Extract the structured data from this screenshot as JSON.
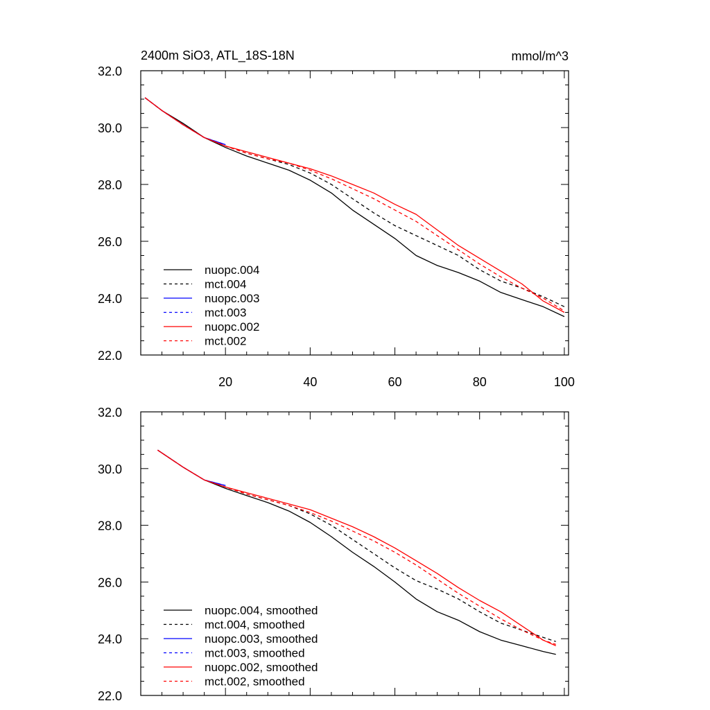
{
  "figure": {
    "title": "2400m SiO3, ATL_18S-18N",
    "units": "mmol/m^3"
  },
  "chart_data": [
    {
      "type": "line",
      "panel": "top",
      "title": "2400m SiO3, ATL_18S-18N",
      "units_label": "mmol/m^3",
      "xlabel": "",
      "ylabel": "",
      "xlim": [
        0,
        101
      ],
      "ylim": [
        22,
        32
      ],
      "xticks": [
        20,
        40,
        60,
        80,
        100
      ],
      "xtick_labels": [
        "20",
        "40",
        "60",
        "80",
        "100"
      ],
      "yticks": [
        22,
        24,
        26,
        28,
        30,
        32
      ],
      "ytick_labels": [
        "22.0",
        "24.0",
        "26.0",
        "28.0",
        "30.0",
        "32.0"
      ],
      "legend_position": "bottom-left",
      "series": [
        {
          "name": "nuopc.004",
          "color": "#000000",
          "dash": "solid",
          "x": [
            1,
            5,
            10,
            15,
            20,
            25,
            30,
            35,
            40,
            45,
            50,
            55,
            60,
            65,
            70,
            75,
            80,
            85,
            90,
            95,
            100
          ],
          "y": [
            31.05,
            30.6,
            30.15,
            29.65,
            29.3,
            29.0,
            28.75,
            28.5,
            28.15,
            27.7,
            27.1,
            26.6,
            26.1,
            25.5,
            25.15,
            24.9,
            24.6,
            24.2,
            23.95,
            23.7,
            23.35
          ]
        },
        {
          "name": "mct.004",
          "color": "#000000",
          "dash": "dashed",
          "x": [
            1,
            5,
            10,
            15,
            20,
            25,
            30,
            35,
            40,
            45,
            50,
            55,
            60,
            65,
            70,
            75,
            80,
            85,
            90,
            95,
            100
          ],
          "y": [
            31.05,
            30.6,
            30.1,
            29.65,
            29.35,
            29.1,
            28.9,
            28.7,
            28.4,
            28.0,
            27.5,
            27.0,
            26.55,
            26.2,
            25.85,
            25.5,
            25.0,
            24.6,
            24.35,
            24.05,
            23.7
          ]
        },
        {
          "name": "nuopc.003",
          "color": "#0000ff",
          "dash": "solid",
          "x": [
            1,
            5,
            10,
            15,
            20
          ],
          "y": [
            31.05,
            30.6,
            30.1,
            29.65,
            29.4
          ]
        },
        {
          "name": "mct.003",
          "color": "#0000ff",
          "dash": "dashed",
          "x": [
            1,
            5,
            10,
            15,
            20
          ],
          "y": [
            31.05,
            30.6,
            30.1,
            29.65,
            29.4
          ]
        },
        {
          "name": "nuopc.002",
          "color": "#ff0000",
          "dash": "solid",
          "x": [
            1,
            5,
            10,
            15,
            20,
            25,
            30,
            35,
            40,
            45,
            50,
            55,
            60,
            65,
            70,
            75,
            80,
            85,
            90,
            95,
            100
          ],
          "y": [
            31.05,
            30.6,
            30.1,
            29.65,
            29.35,
            29.15,
            28.95,
            28.75,
            28.55,
            28.3,
            28.0,
            27.7,
            27.3,
            26.95,
            26.4,
            25.85,
            25.4,
            24.95,
            24.5,
            23.9,
            23.5
          ]
        },
        {
          "name": "mct.002",
          "color": "#ff0000",
          "dash": "dashed",
          "x": [
            1,
            5,
            10,
            15,
            20,
            25,
            30,
            35,
            40,
            45,
            50,
            55,
            60,
            65,
            70,
            75,
            80,
            85,
            90,
            95,
            100
          ],
          "y": [
            31.05,
            30.6,
            30.1,
            29.65,
            29.35,
            29.1,
            28.9,
            28.75,
            28.5,
            28.2,
            27.85,
            27.5,
            27.1,
            26.7,
            26.2,
            25.7,
            25.2,
            24.75,
            24.35,
            24.0,
            23.55
          ]
        }
      ]
    },
    {
      "type": "line",
      "panel": "bottom",
      "title": "",
      "xlabel": "",
      "ylabel": "",
      "xlim": [
        0,
        101
      ],
      "ylim": [
        22,
        32
      ],
      "xticks": [
        20,
        40,
        60,
        80,
        100
      ],
      "xtick_labels": [],
      "yticks": [
        22,
        24,
        26,
        28,
        30,
        32
      ],
      "ytick_labels": [
        "22.0",
        "24.0",
        "26.0",
        "28.0",
        "30.0",
        "32.0"
      ],
      "legend_position": "bottom-left",
      "series": [
        {
          "name": "nuopc.004, smoothed",
          "color": "#000000",
          "dash": "solid",
          "x": [
            4,
            10,
            15,
            20,
            25,
            30,
            35,
            40,
            45,
            50,
            55,
            60,
            65,
            70,
            75,
            80,
            85,
            90,
            95,
            98
          ],
          "y": [
            30.65,
            30.05,
            29.6,
            29.3,
            29.05,
            28.8,
            28.5,
            28.1,
            27.6,
            27.05,
            26.55,
            26.0,
            25.4,
            24.95,
            24.65,
            24.25,
            23.95,
            23.75,
            23.55,
            23.45
          ]
        },
        {
          "name": "mct.004, smoothed",
          "color": "#000000",
          "dash": "dashed",
          "x": [
            4,
            10,
            15,
            20,
            25,
            30,
            35,
            40,
            45,
            50,
            55,
            60,
            65,
            70,
            75,
            80,
            85,
            90,
            95,
            98
          ],
          "y": [
            30.65,
            30.05,
            29.6,
            29.35,
            29.1,
            28.9,
            28.7,
            28.4,
            28.0,
            27.5,
            27.0,
            26.5,
            26.05,
            25.75,
            25.4,
            24.95,
            24.55,
            24.3,
            24.05,
            23.9
          ]
        },
        {
          "name": "nuopc.003, smoothed",
          "color": "#0000ff",
          "dash": "solid",
          "x": [
            4,
            10,
            15,
            20
          ],
          "y": [
            30.65,
            30.05,
            29.6,
            29.4
          ]
        },
        {
          "name": "mct.003, smoothed",
          "color": "#0000ff",
          "dash": "dashed",
          "x": [
            4,
            10,
            15,
            20
          ],
          "y": [
            30.65,
            30.05,
            29.6,
            29.4
          ]
        },
        {
          "name": "nuopc.002, smoothed",
          "color": "#ff0000",
          "dash": "solid",
          "x": [
            4,
            10,
            15,
            20,
            25,
            30,
            35,
            40,
            45,
            50,
            55,
            60,
            65,
            70,
            75,
            80,
            85,
            90,
            95,
            98
          ],
          "y": [
            30.65,
            30.05,
            29.6,
            29.35,
            29.15,
            28.95,
            28.75,
            28.55,
            28.25,
            27.95,
            27.6,
            27.2,
            26.75,
            26.3,
            25.8,
            25.35,
            24.95,
            24.45,
            23.95,
            23.75
          ]
        },
        {
          "name": "mct.002, smoothed",
          "color": "#ff0000",
          "dash": "dashed",
          "x": [
            4,
            10,
            15,
            20,
            25,
            30,
            35,
            40,
            45,
            50,
            55,
            60,
            65,
            70,
            75,
            80,
            85,
            90,
            95,
            98
          ],
          "y": [
            30.65,
            30.05,
            29.6,
            29.35,
            29.1,
            28.9,
            28.7,
            28.45,
            28.15,
            27.8,
            27.45,
            27.05,
            26.6,
            26.1,
            25.6,
            25.15,
            24.7,
            24.3,
            23.95,
            23.8
          ]
        }
      ]
    }
  ]
}
